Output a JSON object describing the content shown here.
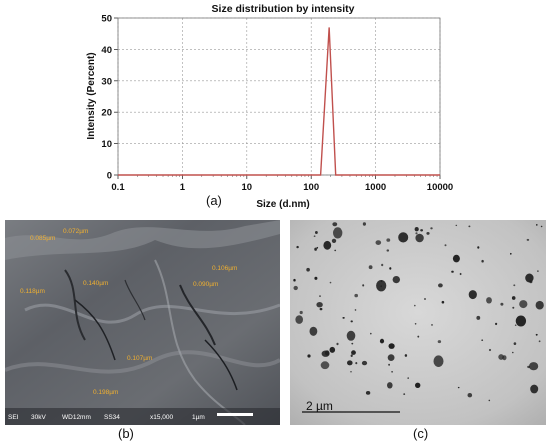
{
  "chart_data": {
    "type": "line",
    "title": "Size distribution by intensity",
    "xlabel": "Size (d.nm)",
    "ylabel": "Intensity (Percent)",
    "xscale": "log",
    "xlim": [
      0.1,
      10000
    ],
    "ylim": [
      0,
      50
    ],
    "xticks": [
      "0.1",
      "1",
      "10",
      "100",
      "1000",
      "10000"
    ],
    "yticks": [
      "0",
      "10",
      "20",
      "30",
      "40",
      "50"
    ],
    "grid": true,
    "series": [
      {
        "color": "#c0504d",
        "x": [
          0.1,
          100,
          140,
          190,
          240,
          10000
        ],
        "y": [
          0,
          0,
          0,
          47,
          0,
          0
        ]
      }
    ]
  },
  "panels": {
    "a": "(a)",
    "b": "(b)",
    "c": "(c)"
  },
  "sem": {
    "labels": [
      "0.085µm",
      "0.072µm",
      "0.118µm",
      "0.140µm",
      "0.106µm",
      "0.090µm",
      "0.107µm",
      "0.198µm"
    ],
    "info": [
      "SEI",
      "30kV",
      "WD12mm",
      "SS34",
      "x15,000",
      "1µm"
    ]
  },
  "tem": {
    "scale_text": "2  µm"
  }
}
